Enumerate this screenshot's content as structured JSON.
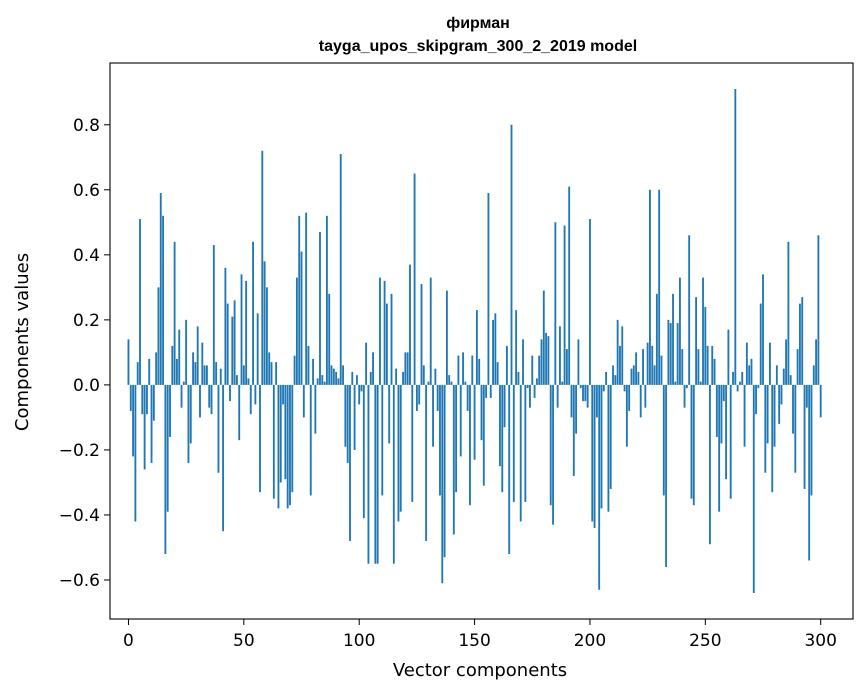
{
  "chart_data": {
    "type": "bar",
    "title": "фирман",
    "subtitle": "tayga_upos_skipgram_300_2_2019 model",
    "xlabel": "Vector components",
    "ylabel": "Components values",
    "xlim": [
      -8,
      314
    ],
    "ylim": [
      -0.72,
      0.99
    ],
    "xticks": [
      0,
      50,
      100,
      150,
      200,
      250,
      300
    ],
    "yticks": [
      -0.6,
      -0.4,
      -0.2,
      0.0,
      0.2,
      0.4,
      0.6,
      0.8
    ],
    "ytick_labels": [
      "−0.6",
      "−0.4",
      "−0.2",
      "0.0",
      "0.2",
      "0.4",
      "0.6",
      "0.8"
    ],
    "bar_color": "#1f77b4",
    "grid": false,
    "values": [
      0.14,
      -0.08,
      -0.22,
      -0.42,
      0.07,
      0.51,
      -0.09,
      -0.26,
      -0.09,
      0.08,
      -0.24,
      -0.11,
      0.1,
      0.3,
      0.59,
      0.52,
      -0.52,
      -0.39,
      -0.16,
      0.12,
      0.44,
      0.08,
      0.17,
      -0.07,
      0.01,
      0.2,
      -0.24,
      -0.18,
      0.1,
      0.07,
      0.18,
      -0.1,
      0.13,
      0.06,
      0.06,
      -0.07,
      -0.09,
      0.43,
      0.07,
      -0.27,
      0.05,
      -0.45,
      0.36,
      0.25,
      -0.05,
      0.21,
      0.26,
      0.03,
      -0.17,
      0.34,
      0.06,
      0.32,
      0.02,
      -0.09,
      0.44,
      -0.06,
      0.22,
      -0.33,
      0.72,
      0.38,
      0.3,
      0.1,
      0.07,
      -0.35,
      0.07,
      -0.38,
      -0.3,
      -0.06,
      -0.29,
      -0.38,
      -0.37,
      -0.33,
      0.09,
      0.33,
      0.52,
      0.41,
      -0.1,
      0.53,
      0.12,
      -0.34,
      0.08,
      -0.15,
      0.02,
      0.47,
      0.03,
      0.01,
      0.52,
      0.28,
      0.06,
      0.05,
      0.04,
      0.02,
      0.71,
      0.06,
      -0.19,
      -0.24,
      -0.48,
      0.04,
      -0.2,
      0.03,
      -0.06,
      -0.02,
      -0.41,
      0.13,
      -0.55,
      0.04,
      0.1,
      -0.55,
      -0.55,
      0.33,
      -0.34,
      0.32,
      0.25,
      -0.18,
      0.28,
      -0.55,
      0.05,
      -0.42,
      -0.39,
      0.04,
      0.1,
      0.1,
      0.37,
      -0.36,
      0.65,
      -0.08,
      -0.06,
      0.31,
      0.06,
      -0.48,
      0.01,
      0.33,
      -0.19,
      0.05,
      -0.08,
      -0.34,
      -0.61,
      -0.53,
      0.29,
      0.03,
      0.01,
      -0.46,
      -0.33,
      0.09,
      -0.22,
      0.1,
      0.01,
      -0.08,
      -0.37,
      0.09,
      -0.23,
      0.23,
      0.08,
      -0.17,
      -0.31,
      -0.04,
      0.59,
      -0.04,
      0.2,
      0.22,
      0.07,
      -0.25,
      -0.33,
      -0.13,
      0.12,
      -0.52,
      0.8,
      -0.36,
      0.23,
      0.04,
      -0.42,
      0.14,
      -0.36,
      -0.01,
      -0.07,
      0.09,
      -0.04,
      0.02,
      0.09,
      0.14,
      0.29,
      0.16,
      0.15,
      -0.37,
      -0.43,
      0.5,
      -0.07,
      0.18,
      0.01,
      0.49,
      0.11,
      0.61,
      -0.1,
      -0.28,
      -0.15,
      0.14,
      -0.01,
      -0.05,
      -0.05,
      -0.07,
      0.51,
      -0.42,
      -0.44,
      -0.1,
      -0.63,
      -0.38,
      -0.02,
      0.04,
      -0.39,
      -0.32,
      0.06,
      0.03,
      0.2,
      0.12,
      0.18,
      -0.02,
      -0.19,
      -0.08,
      0.05,
      0.06,
      0.1,
      0.04,
      -0.1,
      0.11,
      -0.07,
      0.13,
      0.6,
      0.12,
      0.06,
      0.28,
      0.6,
      0.09,
      -0.34,
      -0.56,
      0.2,
      0.19,
      0.28,
      0.01,
      0.19,
      0.33,
      0.11,
      -0.07,
      -0.01,
      0.46,
      -0.35,
      -0.37,
      0.27,
      0.11,
      0.01,
      0.33,
      0.24,
      0.12,
      -0.49,
      0.12,
      0.08,
      -0.16,
      -0.39,
      -0.18,
      -0.05,
      -0.29,
      0.17,
      -0.35,
      0.04,
      0.91,
      -0.02,
      0.01,
      0.04,
      -0.19,
      0.13,
      0.06,
      0.08,
      -0.64,
      -0.09,
      -0.01,
      0.25,
      0.34,
      -0.27,
      -0.18,
      0.13,
      -0.33,
      -0.19,
      0.06,
      -0.12,
      -0.06,
      0.05,
      0.14,
      0.44,
      0.03,
      -0.15,
      -0.27,
      0.11,
      0.25,
      0.27,
      -0.32,
      -0.07,
      -0.54,
      -0.34,
      0.06,
      0.14,
      0.46,
      -0.1
    ]
  }
}
